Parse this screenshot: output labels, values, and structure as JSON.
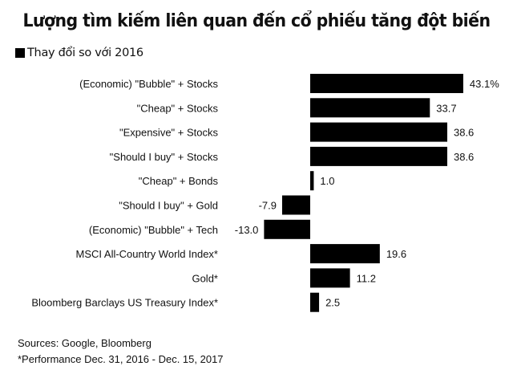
{
  "chart_data": {
    "type": "bar",
    "orientation": "horizontal",
    "title": "Lượng tìm kiếm liên quan đến cổ phiếu tăng đột biến",
    "legend": [
      "Thay đổi so với 2016"
    ],
    "legend_position": "top-left",
    "categories": [
      "(Economic) \"Bubble\" + Stocks",
      "\"Cheap\" + Stocks",
      "\"Expensive\" + Stocks",
      "\"Should I buy\" + Stocks",
      "\"Cheap\" + Bonds",
      "\"Should I buy\" + Gold",
      "(Economic) \"Bubble\" + Tech",
      "MSCI All-Country World Index*",
      "Gold*",
      "Bloomberg Barclays US Treasury Index*"
    ],
    "values": [
      43.1,
      33.7,
      38.6,
      38.6,
      1.0,
      -7.9,
      -13.0,
      19.6,
      11.2,
      2.5
    ],
    "labels": [
      "43.1%",
      "33.7",
      "38.6",
      "38.6",
      "1.0",
      "-7.9",
      "-13.0",
      "19.6",
      "11.2",
      "2.5"
    ],
    "bar_color": "#000000",
    "grid": false,
    "xlim": [
      -13.0,
      43.1
    ]
  },
  "footnotes": {
    "sources": "Sources: Google, Bloomberg",
    "note": "*Performance Dec. 31, 2016 - Dec. 15, 2017"
  }
}
